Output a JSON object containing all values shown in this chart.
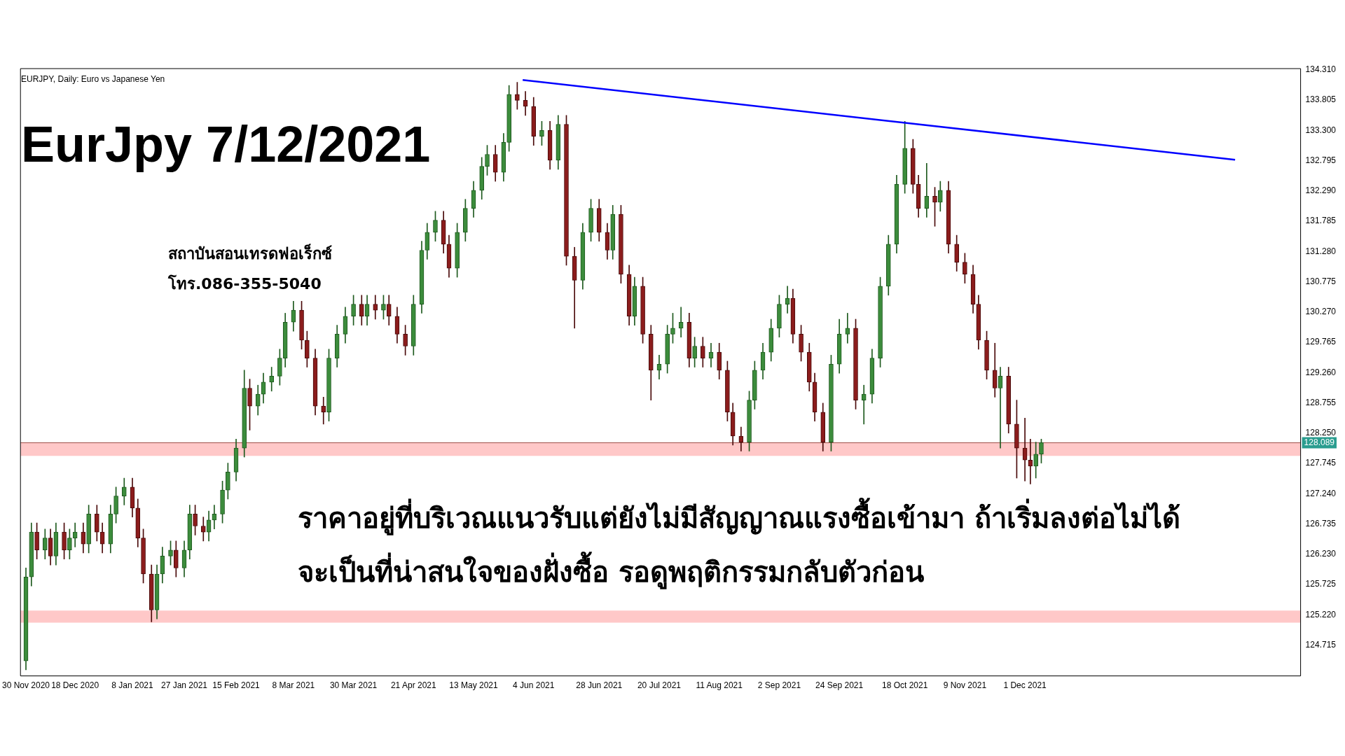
{
  "chart_data": {
    "type": "candlestick",
    "title": "EurJpy 7/12/2021",
    "annotations": [
      "EURJPY, Daily:  Euro vs Japanese Yen",
      "สถาบันสอนเทรดฟอเร็กซ์",
      "โทร.086-355-5040",
      "ราคาอยู่ที่บริเวณแนวรับแต่ยังไม่มีสัญญาณแรงซื้อเข้ามา ถ้าเริ่มลงต่อไม่ได้",
      "จะเป็นที่น่าสนใจของฝั่งซื้อ รอดูพฤติกรรมกลับตัวก่อน"
    ],
    "x": [
      "2020-11-30",
      "2020-12-02",
      "2020-12-04",
      "2020-12-07",
      "2020-12-09",
      "2020-12-11",
      "2020-12-14",
      "2020-12-16",
      "2020-12-18",
      "2020-12-21",
      "2020-12-23",
      "2020-12-26",
      "2020-12-28",
      "2020-12-31",
      "2021-01-02",
      "2021-01-05",
      "2021-01-08",
      "2021-01-10",
      "2021-01-12",
      "2021-01-15",
      "2021-01-17",
      "2021-01-19",
      "2021-01-22",
      "2021-01-24",
      "2021-01-27",
      "2021-01-29",
      "2021-01-31",
      "2021-02-03",
      "2021-02-05",
      "2021-02-07",
      "2021-02-10",
      "2021-02-12",
      "2021-02-15",
      "2021-02-18",
      "2021-02-20",
      "2021-02-23",
      "2021-02-25",
      "2021-02-28",
      "2021-03-03",
      "2021-03-05",
      "2021-03-08",
      "2021-03-11",
      "2021-03-13",
      "2021-03-16",
      "2021-03-19",
      "2021-03-21",
      "2021-03-24",
      "2021-03-27",
      "2021-03-30",
      "2021-04-02",
      "2021-04-04",
      "2021-04-07",
      "2021-04-10",
      "2021-04-12",
      "2021-04-15",
      "2021-04-18",
      "2021-04-21",
      "2021-04-24",
      "2021-04-26",
      "2021-04-29",
      "2021-05-02",
      "2021-05-04",
      "2021-05-07",
      "2021-05-10",
      "2021-05-13",
      "2021-05-16",
      "2021-05-18",
      "2021-05-21",
      "2021-05-24",
      "2021-05-26",
      "2021-05-29",
      "2021-06-01",
      "2021-06-04",
      "2021-06-07",
      "2021-06-10",
      "2021-06-13",
      "2021-06-16",
      "2021-06-19",
      "2021-06-22",
      "2021-06-25",
      "2021-06-28",
      "2021-07-01",
      "2021-07-03",
      "2021-07-06",
      "2021-07-09",
      "2021-07-11",
      "2021-07-14",
      "2021-07-17",
      "2021-07-20",
      "2021-07-23",
      "2021-07-25",
      "2021-07-28",
      "2021-07-31",
      "2021-08-02",
      "2021-08-05",
      "2021-08-08",
      "2021-08-11",
      "2021-08-14",
      "2021-08-16",
      "2021-08-19",
      "2021-08-22",
      "2021-08-24",
      "2021-08-27",
      "2021-08-30",
      "2021-09-02",
      "2021-09-05",
      "2021-09-07",
      "2021-09-10",
      "2021-09-13",
      "2021-09-15",
      "2021-09-18",
      "2021-09-21",
      "2021-09-24",
      "2021-09-27",
      "2021-09-30",
      "2021-10-03",
      "2021-10-06",
      "2021-10-09",
      "2021-10-12",
      "2021-10-15",
      "2021-10-18",
      "2021-10-21",
      "2021-10-23",
      "2021-10-26",
      "2021-10-29",
      "2021-10-31",
      "2021-11-03",
      "2021-11-06",
      "2021-11-09",
      "2021-11-12",
      "2021-11-14",
      "2021-11-17",
      "2021-11-20",
      "2021-11-22",
      "2021-11-25",
      "2021-11-28",
      "2021-12-01",
      "2021-12-03",
      "2021-12-05",
      "2021-12-07"
    ],
    "ohlc": [
      [
        124.45,
        126.0,
        124.3,
        125.85
      ],
      [
        125.85,
        126.75,
        125.7,
        126.6
      ],
      [
        126.6,
        126.75,
        126.15,
        126.3
      ],
      [
        126.3,
        126.65,
        126.15,
        126.5
      ],
      [
        126.5,
        126.65,
        126.05,
        126.2
      ],
      [
        126.2,
        126.75,
        126.05,
        126.6
      ],
      [
        126.6,
        126.75,
        126.15,
        126.3
      ],
      [
        126.3,
        126.65,
        126.15,
        126.5
      ],
      [
        126.5,
        126.75,
        126.35,
        126.6
      ],
      [
        126.6,
        126.75,
        126.25,
        126.4
      ],
      [
        126.4,
        127.05,
        126.25,
        126.9
      ],
      [
        126.9,
        127.05,
        126.45,
        126.6
      ],
      [
        126.6,
        126.75,
        126.25,
        126.4
      ],
      [
        126.4,
        127.05,
        126.25,
        126.9
      ],
      [
        126.9,
        127.35,
        126.75,
        127.2
      ],
      [
        127.2,
        127.5,
        127.05,
        127.35
      ],
      [
        127.35,
        127.5,
        126.85,
        127.0
      ],
      [
        127.0,
        127.15,
        126.35,
        126.5
      ],
      [
        126.5,
        126.65,
        125.75,
        125.9
      ],
      [
        125.9,
        126.05,
        125.1,
        125.3
      ],
      [
        125.3,
        126.05,
        125.15,
        125.9
      ],
      [
        125.9,
        126.35,
        125.75,
        126.2
      ],
      [
        126.2,
        126.45,
        126.05,
        126.3
      ],
      [
        126.3,
        126.45,
        125.85,
        126.0
      ],
      [
        126.0,
        126.45,
        125.85,
        126.3
      ],
      [
        126.3,
        127.05,
        126.15,
        126.9
      ],
      [
        126.9,
        127.05,
        126.55,
        126.7
      ],
      [
        126.7,
        126.85,
        126.45,
        126.6
      ],
      [
        126.6,
        126.95,
        126.45,
        126.8
      ],
      [
        126.8,
        127.05,
        126.65,
        126.9
      ],
      [
        126.9,
        127.45,
        126.75,
        127.3
      ],
      [
        127.3,
        127.75,
        127.15,
        127.6
      ],
      [
        127.6,
        128.15,
        127.45,
        128.0
      ],
      [
        128.0,
        129.3,
        127.85,
        129.0
      ],
      [
        129.0,
        129.15,
        128.3,
        128.7
      ],
      [
        128.7,
        129.05,
        128.55,
        128.9
      ],
      [
        128.9,
        129.25,
        128.75,
        129.1
      ],
      [
        129.1,
        129.35,
        128.95,
        129.2
      ],
      [
        129.2,
        129.65,
        129.05,
        129.5
      ],
      [
        129.5,
        130.25,
        129.35,
        130.1
      ],
      [
        130.1,
        130.45,
        129.95,
        130.3
      ],
      [
        130.3,
        130.45,
        129.65,
        129.8
      ],
      [
        129.8,
        129.95,
        129.35,
        129.5
      ],
      [
        129.5,
        129.65,
        128.55,
        128.7
      ],
      [
        128.7,
        128.85,
        128.4,
        128.6
      ],
      [
        128.6,
        129.65,
        128.45,
        129.5
      ],
      [
        129.5,
        130.05,
        129.35,
        129.9
      ],
      [
        129.9,
        130.35,
        129.75,
        130.2
      ],
      [
        130.2,
        130.55,
        130.05,
        130.4
      ],
      [
        130.4,
        130.55,
        130.05,
        130.2
      ],
      [
        130.2,
        130.55,
        130.05,
        130.4
      ],
      [
        130.4,
        130.55,
        130.15,
        130.3
      ],
      [
        130.3,
        130.55,
        130.15,
        130.4
      ],
      [
        130.4,
        130.55,
        130.05,
        130.2
      ],
      [
        130.2,
        130.35,
        129.75,
        129.9
      ],
      [
        129.9,
        130.05,
        129.55,
        129.7
      ],
      [
        129.7,
        130.55,
        129.55,
        130.4
      ],
      [
        130.4,
        131.45,
        130.25,
        131.3
      ],
      [
        131.3,
        131.75,
        131.15,
        131.6
      ],
      [
        131.6,
        131.95,
        131.45,
        131.8
      ],
      [
        131.8,
        131.95,
        131.25,
        131.4
      ],
      [
        131.4,
        131.55,
        130.85,
        131.0
      ],
      [
        131.0,
        131.75,
        130.85,
        131.6
      ],
      [
        131.6,
        132.15,
        131.45,
        132.0
      ],
      [
        132.0,
        132.45,
        131.85,
        132.3
      ],
      [
        132.3,
        132.85,
        132.15,
        132.7
      ],
      [
        132.7,
        133.05,
        132.55,
        132.9
      ],
      [
        132.9,
        133.05,
        132.45,
        132.6
      ],
      [
        132.6,
        133.25,
        132.45,
        133.1
      ],
      [
        133.1,
        134.05,
        132.95,
        133.9
      ],
      [
        133.9,
        134.1,
        133.65,
        133.8
      ],
      [
        133.8,
        133.95,
        133.55,
        133.7
      ],
      [
        133.7,
        133.85,
        133.05,
        133.2
      ],
      [
        133.2,
        133.45,
        133.05,
        133.3
      ],
      [
        133.3,
        133.45,
        132.65,
        132.8
      ],
      [
        132.8,
        133.55,
        132.65,
        133.4
      ],
      [
        133.4,
        133.55,
        131.05,
        131.2
      ],
      [
        131.2,
        131.35,
        130.0,
        130.8
      ],
      [
        130.8,
        131.75,
        130.65,
        131.6
      ],
      [
        131.6,
        132.15,
        131.45,
        132.0
      ],
      [
        132.0,
        132.15,
        131.45,
        131.6
      ],
      [
        131.6,
        131.75,
        131.15,
        131.3
      ],
      [
        131.3,
        132.05,
        131.15,
        131.9
      ],
      [
        131.9,
        132.05,
        130.75,
        130.9
      ],
      [
        130.9,
        131.05,
        130.05,
        130.2
      ],
      [
        130.2,
        130.85,
        130.05,
        130.7
      ],
      [
        130.7,
        130.85,
        129.75,
        129.9
      ],
      [
        129.9,
        130.05,
        128.8,
        129.3
      ],
      [
        129.3,
        129.55,
        129.15,
        129.4
      ],
      [
        129.4,
        130.05,
        129.25,
        129.9
      ],
      [
        129.9,
        130.25,
        129.75,
        130.0
      ],
      [
        130.0,
        130.35,
        129.85,
        130.1
      ],
      [
        130.1,
        130.25,
        129.35,
        129.5
      ],
      [
        129.5,
        129.85,
        129.35,
        129.7
      ],
      [
        129.7,
        129.85,
        129.35,
        129.5
      ],
      [
        129.5,
        129.75,
        129.35,
        129.6
      ],
      [
        129.6,
        129.75,
        129.15,
        129.3
      ],
      [
        129.3,
        129.45,
        128.45,
        128.6
      ],
      [
        128.6,
        128.75,
        128.05,
        128.2
      ],
      [
        128.2,
        128.35,
        127.95,
        128.1
      ],
      [
        128.1,
        128.95,
        127.95,
        128.8
      ],
      [
        128.8,
        129.45,
        128.65,
        129.3
      ],
      [
        129.3,
        129.75,
        129.15,
        129.6
      ],
      [
        129.6,
        130.15,
        129.45,
        130.0
      ],
      [
        130.0,
        130.55,
        129.85,
        130.4
      ],
      [
        130.4,
        130.7,
        130.25,
        130.5
      ],
      [
        130.5,
        130.65,
        129.75,
        129.9
      ],
      [
        129.9,
        130.05,
        129.45,
        129.6
      ],
      [
        129.6,
        129.75,
        128.95,
        129.1
      ],
      [
        129.1,
        129.25,
        128.45,
        128.6
      ],
      [
        128.6,
        128.75,
        127.95,
        128.1
      ],
      [
        128.1,
        129.55,
        127.95,
        129.4
      ],
      [
        129.4,
        130.15,
        129.25,
        129.9
      ],
      [
        129.9,
        130.25,
        129.75,
        130.0
      ],
      [
        130.0,
        130.15,
        128.65,
        128.8
      ],
      [
        128.8,
        129.05,
        128.4,
        128.9
      ],
      [
        128.9,
        129.65,
        128.75,
        129.5
      ],
      [
        129.5,
        130.85,
        129.35,
        130.7
      ],
      [
        130.7,
        131.55,
        130.55,
        131.4
      ],
      [
        131.4,
        132.55,
        131.25,
        132.4
      ],
      [
        132.4,
        133.45,
        132.25,
        133.0
      ],
      [
        133.0,
        133.15,
        132.25,
        132.4
      ],
      [
        132.4,
        132.55,
        131.85,
        132.0
      ],
      [
        132.0,
        132.75,
        131.85,
        132.2
      ],
      [
        132.2,
        132.35,
        131.7,
        132.1
      ],
      [
        132.1,
        132.45,
        131.95,
        132.3
      ],
      [
        132.3,
        132.45,
        131.25,
        131.4
      ],
      [
        131.4,
        131.55,
        130.95,
        131.1
      ],
      [
        131.1,
        131.25,
        130.75,
        130.9
      ],
      [
        130.9,
        131.05,
        130.25,
        130.4
      ],
      [
        130.4,
        130.55,
        129.65,
        129.8
      ],
      [
        129.8,
        129.95,
        129.15,
        129.3
      ],
      [
        129.3,
        129.75,
        128.85,
        129.0
      ],
      [
        129.0,
        129.35,
        128.0,
        129.2
      ],
      [
        129.2,
        129.35,
        128.25,
        128.4
      ],
      [
        128.4,
        128.8,
        127.5,
        128.0
      ],
      [
        128.0,
        128.5,
        127.45,
        127.8
      ],
      [
        127.8,
        128.15,
        127.4,
        127.7
      ],
      [
        127.7,
        128.1,
        127.5,
        127.9
      ],
      [
        127.9,
        128.15,
        127.75,
        128.09
      ]
    ],
    "series": [
      {
        "type": "line",
        "color": "#0000ff",
        "x": [
          "2021-05-31",
          "2022-02-16"
        ],
        "values": [
          134.14,
          132.81
        ]
      }
    ],
    "xlim": [
      "2020-11-28",
      "2022-03-12"
    ],
    "xticks": [
      {
        "value": "2020-11-30",
        "label": "30 Nov 2020"
      },
      {
        "value": "2020-12-18",
        "label": "18 Dec 2020"
      },
      {
        "value": "2021-01-08",
        "label": "8 Jan 2021"
      },
      {
        "value": "2021-01-27",
        "label": "27 Jan 2021"
      },
      {
        "value": "2021-02-15",
        "label": "15 Feb 2021"
      },
      {
        "value": "2021-03-08",
        "label": "8 Mar 2021"
      },
      {
        "value": "2021-03-30",
        "label": "30 Mar 2021"
      },
      {
        "value": "2021-04-21",
        "label": "21 Apr 2021"
      },
      {
        "value": "2021-05-13",
        "label": "13 May 2021"
      },
      {
        "value": "2021-06-04",
        "label": "4 Jun 2021"
      },
      {
        "value": "2021-06-28",
        "label": "28 Jun 2021"
      },
      {
        "value": "2021-07-20",
        "label": "20 Jul 2021"
      },
      {
        "value": "2021-08-11",
        "label": "11 Aug 2021"
      },
      {
        "value": "2021-09-02",
        "label": "2 Sep 2021"
      },
      {
        "value": "2021-09-24",
        "label": "24 Sep 2021"
      },
      {
        "value": "2021-10-18",
        "label": "18 Oct 2021"
      },
      {
        "value": "2021-11-09",
        "label": "9 Nov 2021"
      },
      {
        "value": "2021-12-01",
        "label": "1 Dec 2021"
      }
    ],
    "ylim": [
      124.2,
      134.33
    ],
    "yticks": [
      {
        "value": 124.715,
        "label": "124.715"
      },
      {
        "value": 125.22,
        "label": "125.220"
      },
      {
        "value": 125.725,
        "label": "125.725"
      },
      {
        "value": 126.23,
        "label": "126.230"
      },
      {
        "value": 126.735,
        "label": "126.735"
      },
      {
        "value": 127.24,
        "label": "127.240"
      },
      {
        "value": 127.745,
        "label": "127.745"
      },
      {
        "value": 128.25,
        "label": "128.250"
      },
      {
        "value": 128.755,
        "label": "128.755"
      },
      {
        "value": 129.26,
        "label": "129.260"
      },
      {
        "value": 129.765,
        "label": "129.765"
      },
      {
        "value": 130.27,
        "label": "130.270"
      },
      {
        "value": 130.775,
        "label": "130.775"
      },
      {
        "value": 131.28,
        "label": "131.280"
      },
      {
        "value": 131.785,
        "label": "131.785"
      },
      {
        "value": 132.29,
        "label": "132.290"
      },
      {
        "value": 132.795,
        "label": "132.795"
      },
      {
        "value": 133.3,
        "label": "133.300"
      },
      {
        "value": 133.805,
        "label": "133.805"
      },
      {
        "value": 134.31,
        "label": "134.310"
      }
    ],
    "ref_lines": [
      {
        "axis": "y",
        "value": 128.089,
        "label": "128.089",
        "color": "#a0504a"
      }
    ],
    "bands": [
      {
        "axis": "y",
        "from": 127.87,
        "to": 128.09,
        "color": "#ffc8c8"
      },
      {
        "axis": "y",
        "from": 125.09,
        "to": 125.29,
        "color": "#ffc8c8"
      }
    ],
    "grid": false,
    "legend": false
  }
}
